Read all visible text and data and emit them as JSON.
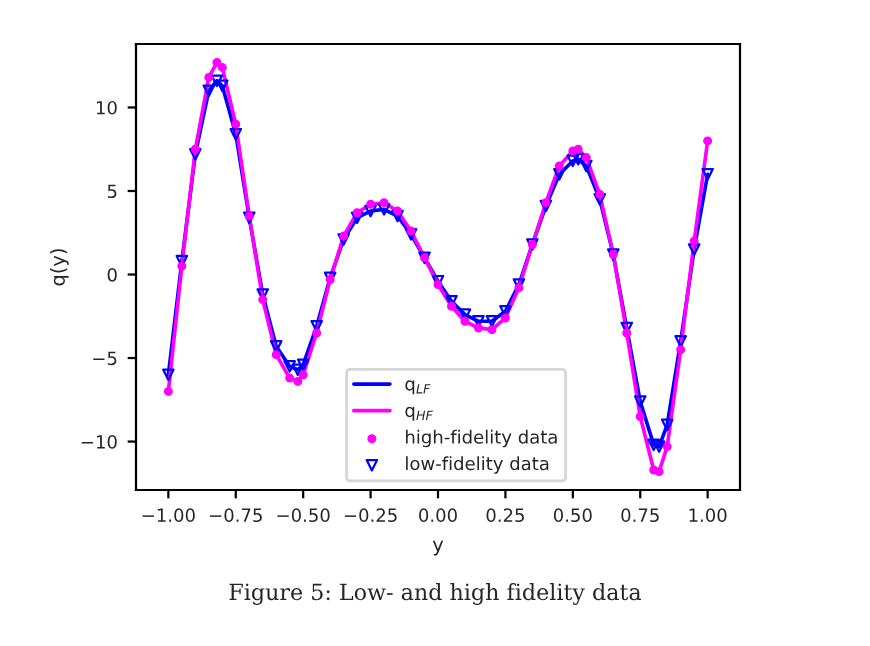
{
  "chart_data": {
    "type": "line",
    "xlabel": "y",
    "ylabel": "q(y)",
    "x": [
      -1.0,
      -0.95,
      -0.9,
      -0.85,
      -0.82,
      -0.8,
      -0.75,
      -0.7,
      -0.65,
      -0.6,
      -0.55,
      -0.52,
      -0.5,
      -0.45,
      -0.4,
      -0.35,
      -0.3,
      -0.25,
      -0.2,
      -0.15,
      -0.1,
      -0.05,
      0.0,
      0.05,
      0.1,
      0.15,
      0.2,
      0.25,
      0.3,
      0.35,
      0.4,
      0.45,
      0.5,
      0.52,
      0.55,
      0.6,
      0.65,
      0.7,
      0.75,
      0.8,
      0.82,
      0.85,
      0.9,
      0.95,
      1.0
    ],
    "series": [
      {
        "name": "q$_{LF}$",
        "color": "#0000ff",
        "marker": "none",
        "values": [
          -6.0,
          0.8,
          7.2,
          11.0,
          11.6,
          11.3,
          8.4,
          3.4,
          -1.2,
          -4.3,
          -5.5,
          -5.7,
          -5.4,
          -3.1,
          -0.2,
          2.1,
          3.4,
          3.8,
          3.9,
          3.5,
          2.4,
          1.0,
          -0.4,
          -1.6,
          -2.4,
          -2.8,
          -2.8,
          -2.2,
          -0.6,
          1.8,
          4.1,
          6.0,
          6.8,
          6.9,
          6.5,
          4.5,
          1.2,
          -3.2,
          -7.6,
          -10.2,
          -10.3,
          -9.0,
          -4.0,
          1.5,
          6.0
        ]
      },
      {
        "name": "q$_{HF}$",
        "color": "#ff00ff",
        "marker": "none",
        "values": [
          -7.0,
          0.5,
          7.5,
          11.8,
          12.7,
          12.4,
          9.0,
          3.5,
          -1.5,
          -4.8,
          -6.2,
          -6.4,
          -6.0,
          -3.5,
          -0.3,
          2.3,
          3.7,
          4.2,
          4.3,
          3.8,
          2.6,
          1.0,
          -0.6,
          -1.9,
          -2.8,
          -3.2,
          -3.3,
          -2.6,
          -0.8,
          1.8,
          4.3,
          6.5,
          7.4,
          7.5,
          7.0,
          4.8,
          1.2,
          -3.5,
          -8.5,
          -11.7,
          -11.8,
          -10.3,
          -4.5,
          2.0,
          8.0
        ]
      },
      {
        "name": "high-fidelity data",
        "type": "scatter",
        "color": "#ff00ff",
        "marker": "circle",
        "values": [
          -7.0,
          0.5,
          7.5,
          11.8,
          12.7,
          12.4,
          9.0,
          3.5,
          -1.5,
          -4.8,
          -6.2,
          -6.4,
          -6.0,
          -3.5,
          -0.3,
          2.3,
          3.7,
          4.2,
          4.3,
          3.8,
          2.6,
          1.0,
          -0.6,
          -1.9,
          -2.8,
          -3.2,
          -3.3,
          -2.6,
          -0.8,
          1.8,
          4.3,
          6.5,
          7.4,
          7.5,
          7.0,
          4.8,
          1.2,
          -3.5,
          -8.5,
          -11.7,
          -11.8,
          -10.3,
          -4.5,
          2.0,
          8.0
        ]
      },
      {
        "name": "low-fidelity data",
        "type": "scatter",
        "color": "#0000ff",
        "marker": "triangle",
        "values": [
          -6.0,
          0.8,
          7.2,
          11.0,
          11.6,
          11.3,
          8.4,
          3.4,
          -1.2,
          -4.3,
          -5.5,
          -5.7,
          -5.4,
          -3.1,
          -0.2,
          2.1,
          3.4,
          3.8,
          3.9,
          3.5,
          2.4,
          1.0,
          -0.4,
          -1.6,
          -2.4,
          -2.8,
          -2.8,
          -2.2,
          -0.6,
          1.8,
          4.1,
          6.0,
          6.8,
          6.9,
          6.5,
          4.5,
          1.2,
          -3.2,
          -7.6,
          -10.2,
          -10.3,
          -9.0,
          -4.0,
          1.5,
          6.0
        ]
      }
    ],
    "xlim": [
      -1.12,
      1.12
    ],
    "xticks": [
      {
        "value": -1.0,
        "label": "−1.00"
      },
      {
        "value": -0.75,
        "label": "−0.75"
      },
      {
        "value": -0.5,
        "label": "−0.50"
      },
      {
        "value": -0.25,
        "label": "−0.25"
      },
      {
        "value": 0.0,
        "label": "0.00"
      },
      {
        "value": 0.25,
        "label": "0.25"
      },
      {
        "value": 0.5,
        "label": "0.50"
      },
      {
        "value": 0.75,
        "label": "0.75"
      },
      {
        "value": 1.0,
        "label": "1.00"
      }
    ],
    "ylim": [
      -12.9,
      13.8
    ],
    "yticks": [
      {
        "value": -10,
        "label": "−10"
      },
      {
        "value": -5,
        "label": "−5"
      },
      0,
      5,
      10
    ],
    "grid": false,
    "legend": "bottom",
    "annotations": [
      "Figure 5: Low- and high fidelity data"
    ]
  }
}
